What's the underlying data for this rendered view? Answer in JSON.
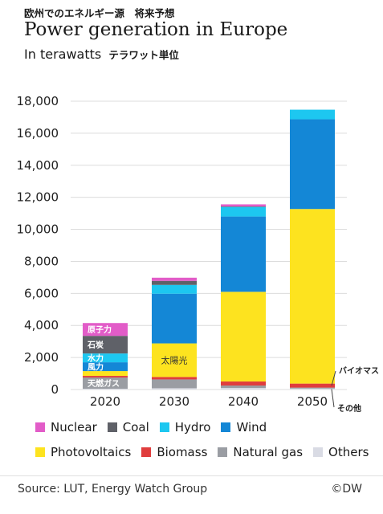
{
  "header": {
    "jp_title": "欧州でのエネルギー源　将来予想",
    "title": "Power generation in Europe",
    "subtitle": "In terawatts",
    "subtitle_jp": "テラワット単位"
  },
  "chart_data": {
    "type": "bar",
    "stacked": true,
    "title": "Power generation in Europe",
    "ylabel": "In terawatts",
    "categories": [
      "2020",
      "2030",
      "2040",
      "2050"
    ],
    "ylim": [
      0,
      18000
    ],
    "yticks": [
      "0",
      "2,000",
      "4,000",
      "6,000",
      "8,000",
      "10,000",
      "12,000",
      "14,000",
      "16,000",
      "18,000"
    ],
    "series": [
      {
        "name": "Others",
        "color": "#d9dbe4",
        "values": [
          50,
          80,
          100,
          60
        ]
      },
      {
        "name": "Natural gas",
        "color": "#9a9da3",
        "values": [
          700,
          550,
          150,
          60
        ]
      },
      {
        "name": "Biomass",
        "color": "#e03d3d",
        "values": [
          100,
          150,
          250,
          250
        ]
      },
      {
        "name": "Photovoltaics",
        "color": "#fde31f",
        "values": [
          300,
          2100,
          5600,
          10900
        ]
      },
      {
        "name": "Wind",
        "color": "#1487d6",
        "values": [
          550,
          3100,
          4700,
          5600
        ]
      },
      {
        "name": "Hydro",
        "color": "#1dc7f0",
        "values": [
          550,
          550,
          600,
          600
        ]
      },
      {
        "name": "Coal",
        "color": "#5f6168",
        "values": [
          1100,
          250,
          30,
          0
        ]
      },
      {
        "name": "Nuclear",
        "color": "#e25cc8",
        "values": [
          800,
          200,
          130,
          0
        ]
      }
    ],
    "bar_labels_2020": [
      "原子力",
      "石炭",
      "水力",
      "風力",
      "天燃ガス"
    ],
    "bar_label_2030": "太陽光",
    "annotations": [
      "バイオマス",
      "その他"
    ],
    "legend": {
      "rows": [
        [
          "Nuclear",
          "Coal",
          "Hydro",
          "Wind"
        ],
        [
          "Photovoltaics",
          "Biomass",
          "Natural gas",
          "Others"
        ]
      ],
      "placement": "bottom"
    }
  },
  "footer": {
    "source": "Source: LUT, Energy Watch Group",
    "credit": "©DW"
  }
}
